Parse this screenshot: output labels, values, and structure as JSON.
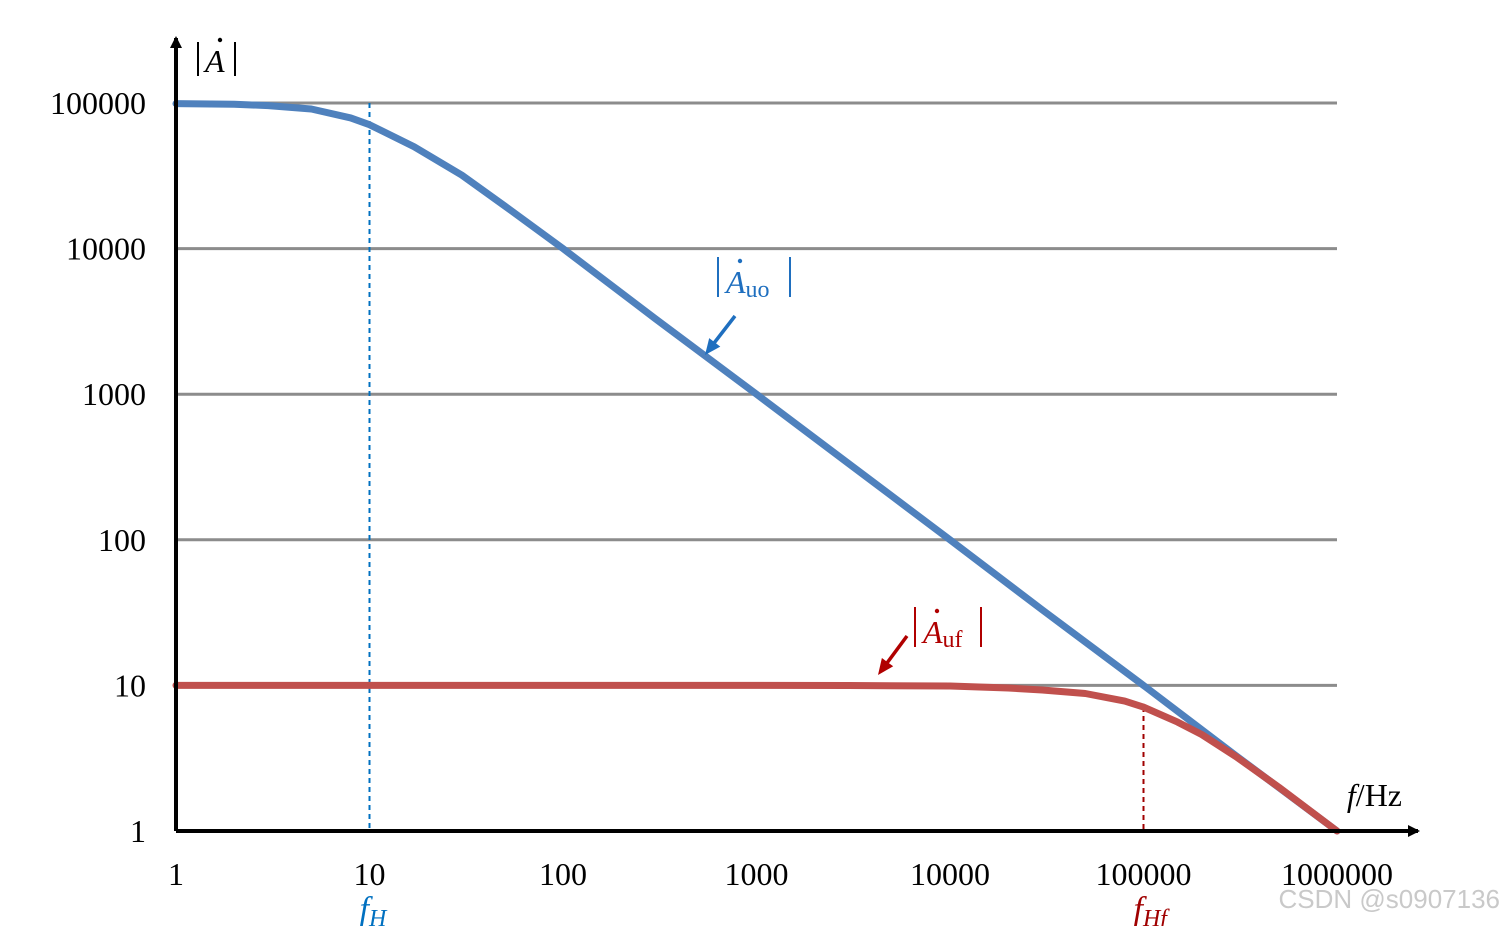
{
  "chart_data": {
    "type": "line",
    "x_scale": "log",
    "y_scale": "log",
    "xlim": [
      1,
      1000000
    ],
    "ylim": [
      1,
      100000
    ],
    "grid": "horizontal",
    "x_ticks": [
      "1",
      "10",
      "100",
      "1000",
      "10000",
      "100000",
      "1000000"
    ],
    "y_ticks": [
      "1",
      "10",
      "100",
      "1000",
      "10000",
      "100000"
    ],
    "xlabel": {
      "italic": "f",
      "rest": "/Hz"
    },
    "ylabel": {
      "base": "A",
      "dot": "̇"
    },
    "series": [
      {
        "name": "Auo",
        "label_base": "A",
        "label_sub": "uo",
        "color": "#4f81bd",
        "x": [
          1,
          2,
          3,
          5,
          8,
          10,
          17,
          30,
          50,
          100,
          300,
          1000,
          3000,
          10000,
          30000,
          100000,
          300000,
          1000000
        ],
        "y": [
          99000,
          98000,
          96000,
          91000,
          79000,
          71000,
          50000,
          32000,
          19600,
          10000,
          3300,
          1000,
          333,
          100,
          33,
          10,
          3.3,
          1
        ]
      },
      {
        "name": "Auf",
        "label_base": "A",
        "label_sub": "uf",
        "color": "#c0504d",
        "x": [
          1,
          10,
          100,
          1000,
          3000,
          10000,
          20000,
          30000,
          50000,
          80000,
          100000,
          150000,
          200000,
          300000,
          500000,
          1000000
        ],
        "y": [
          10,
          10,
          10,
          10,
          9.98,
          9.9,
          9.6,
          9.3,
          8.8,
          7.8,
          7.1,
          5.6,
          4.6,
          3.25,
          2.0,
          1.0
        ]
      }
    ],
    "markers": [
      {
        "x": 10,
        "y": 100000,
        "label_base": "f",
        "label_sub": "H",
        "color": "#0070c0"
      },
      {
        "x": 100000,
        "y": 7.1,
        "label_base": "f",
        "label_sub": "Hf",
        "color": "#a00000"
      }
    ],
    "annotations": {
      "arrow_blue_color": "#1f6fbf",
      "arrow_red_color": "#b00000"
    }
  },
  "watermark": "CSDN @s0907136"
}
